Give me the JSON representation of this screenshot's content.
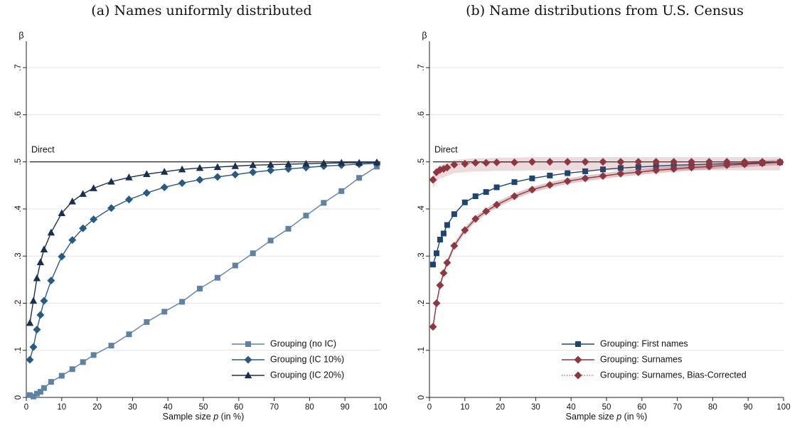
{
  "chart_data": [
    {
      "type": "line",
      "title": "(a) Names uniformly distributed",
      "ylabel": "β",
      "xlabel": "Sample size p (in %)",
      "xlabel_prefix": "Sample size ",
      "xlabel_var": "p",
      "xlabel_suffix": " (in %)",
      "xlim": [
        0,
        100
      ],
      "ylim": [
        0,
        0.75
      ],
      "xticks": [
        0,
        10,
        20,
        30,
        40,
        50,
        60,
        70,
        80,
        90,
        100
      ],
      "yticks": [
        0,
        0.1,
        0.2,
        0.3,
        0.4,
        0.5,
        0.6,
        0.7
      ],
      "ytick_labels": [
        "0",
        ".1",
        ".2",
        ".3",
        ".4",
        ".5",
        ".6",
        ".7"
      ],
      "grid": true,
      "legend_position": "bottom-right",
      "reference_line": {
        "label": "Direct",
        "y": 0.5
      },
      "series": [
        {
          "name": "Grouping (no IC)",
          "color": "#5f82a3",
          "marker": "square",
          "points": [
            [
              1,
              0.005
            ],
            [
              2,
              0.002
            ],
            [
              3,
              0.008
            ],
            [
              4,
              0.012
            ],
            [
              5,
              0.02
            ],
            [
              7,
              0.033
            ],
            [
              10,
              0.046
            ],
            [
              13,
              0.06
            ],
            [
              16,
              0.075
            ],
            [
              19,
              0.09
            ],
            [
              24,
              0.11
            ],
            [
              29,
              0.134
            ],
            [
              34,
              0.16
            ],
            [
              39,
              0.182
            ],
            [
              44,
              0.203
            ],
            [
              49,
              0.231
            ],
            [
              54,
              0.254
            ],
            [
              59,
              0.28
            ],
            [
              64,
              0.306
            ],
            [
              69,
              0.333
            ],
            [
              74,
              0.358
            ],
            [
              79,
              0.386
            ],
            [
              84,
              0.413
            ],
            [
              89,
              0.438
            ],
            [
              94,
              0.466
            ],
            [
              99,
              0.49
            ]
          ]
        },
        {
          "name": "Grouping (IC 10%)",
          "color": "#2a5a80",
          "marker": "diamond",
          "points": [
            [
              1,
              0.08
            ],
            [
              2,
              0.107
            ],
            [
              3,
              0.144
            ],
            [
              4,
              0.175
            ],
            [
              5,
              0.205
            ],
            [
              7,
              0.248
            ],
            [
              10,
              0.299
            ],
            [
              13,
              0.334
            ],
            [
              16,
              0.359
            ],
            [
              19,
              0.378
            ],
            [
              24,
              0.402
            ],
            [
              29,
              0.42
            ],
            [
              34,
              0.434
            ],
            [
              39,
              0.446
            ],
            [
              44,
              0.455
            ],
            [
              49,
              0.462
            ],
            [
              54,
              0.468
            ],
            [
              59,
              0.473
            ],
            [
              64,
              0.478
            ],
            [
              69,
              0.482
            ],
            [
              74,
              0.485
            ],
            [
              79,
              0.488
            ],
            [
              84,
              0.491
            ],
            [
              89,
              0.493
            ],
            [
              94,
              0.495
            ],
            [
              99,
              0.497
            ]
          ]
        },
        {
          "name": "Grouping (IC 20%)",
          "color": "#1b2f4f",
          "marker": "triangle",
          "points": [
            [
              1,
              0.158
            ],
            [
              2,
              0.205
            ],
            [
              3,
              0.253
            ],
            [
              4,
              0.287
            ],
            [
              5,
              0.314
            ],
            [
              7,
              0.35
            ],
            [
              10,
              0.391
            ],
            [
              13,
              0.416
            ],
            [
              16,
              0.432
            ],
            [
              19,
              0.444
            ],
            [
              24,
              0.458
            ],
            [
              29,
              0.467
            ],
            [
              34,
              0.474
            ],
            [
              39,
              0.479
            ],
            [
              44,
              0.484
            ],
            [
              49,
              0.487
            ],
            [
              54,
              0.489
            ],
            [
              59,
              0.491
            ],
            [
              64,
              0.493
            ],
            [
              69,
              0.494
            ],
            [
              74,
              0.495
            ],
            [
              79,
              0.496
            ],
            [
              84,
              0.497
            ],
            [
              89,
              0.498
            ],
            [
              94,
              0.498
            ],
            [
              99,
              0.499
            ]
          ]
        }
      ]
    },
    {
      "type": "line",
      "title": "(b) Name distributions from U.S. Census",
      "ylabel": "β",
      "xlabel": "Sample size p (in %)",
      "xlabel_prefix": "Sample size ",
      "xlabel_var": "p",
      "xlabel_suffix": " (in %)",
      "xlim": [
        0,
        100
      ],
      "ylim": [
        0,
        0.75
      ],
      "xticks": [
        0,
        10,
        20,
        30,
        40,
        50,
        60,
        70,
        80,
        90,
        100
      ],
      "yticks": [
        0,
        0.1,
        0.2,
        0.3,
        0.4,
        0.5,
        0.6,
        0.7
      ],
      "ytick_labels": [
        "0",
        ".1",
        ".2",
        ".3",
        ".4",
        ".5",
        ".6",
        ".7"
      ],
      "grid": true,
      "legend_position": "bottom-right",
      "reference_line": {
        "label": "Direct",
        "y": 0.5
      },
      "series": [
        {
          "name": "Grouping: First names",
          "color": "#1e4570",
          "marker": "square",
          "points": [
            [
              1,
              0.282
            ],
            [
              2,
              0.306
            ],
            [
              3,
              0.335
            ],
            [
              4,
              0.348
            ],
            [
              5,
              0.366
            ],
            [
              7,
              0.389
            ],
            [
              10,
              0.414
            ],
            [
              13,
              0.427
            ],
            [
              16,
              0.436
            ],
            [
              19,
              0.446
            ],
            [
              24,
              0.457
            ],
            [
              29,
              0.465
            ],
            [
              34,
              0.471
            ],
            [
              39,
              0.476
            ],
            [
              44,
              0.48
            ],
            [
              49,
              0.484
            ],
            [
              54,
              0.487
            ],
            [
              59,
              0.489
            ],
            [
              64,
              0.491
            ],
            [
              69,
              0.493
            ],
            [
              74,
              0.494
            ],
            [
              79,
              0.495
            ],
            [
              84,
              0.496
            ],
            [
              89,
              0.497
            ],
            [
              94,
              0.498
            ],
            [
              99,
              0.499
            ]
          ]
        },
        {
          "name": "Grouping: Surnames",
          "color": "#8e3740",
          "marker": "diamond",
          "band": true,
          "points": [
            [
              1,
              0.15
            ],
            [
              2,
              0.2
            ],
            [
              3,
              0.238
            ],
            [
              4,
              0.264
            ],
            [
              5,
              0.286
            ],
            [
              7,
              0.322
            ],
            [
              10,
              0.355
            ],
            [
              13,
              0.379
            ],
            [
              16,
              0.395
            ],
            [
              19,
              0.409
            ],
            [
              24,
              0.427
            ],
            [
              29,
              0.441
            ],
            [
              34,
              0.451
            ],
            [
              39,
              0.459
            ],
            [
              44,
              0.465
            ],
            [
              49,
              0.47
            ],
            [
              54,
              0.475
            ],
            [
              59,
              0.478
            ],
            [
              64,
              0.482
            ],
            [
              69,
              0.485
            ],
            [
              74,
              0.488
            ],
            [
              79,
              0.49
            ],
            [
              84,
              0.493
            ],
            [
              89,
              0.495
            ],
            [
              94,
              0.497
            ],
            [
              99,
              0.499
            ]
          ]
        },
        {
          "name": "Grouping: Surnames, Bias-Corrected",
          "color": "#8e3740",
          "marker": "diamond",
          "dotted": true,
          "points": [
            [
              1,
              0.462
            ],
            [
              2,
              0.478
            ],
            [
              3,
              0.483
            ],
            [
              4,
              0.485
            ],
            [
              5,
              0.488
            ],
            [
              7,
              0.494
            ],
            [
              10,
              0.496
            ],
            [
              13,
              0.498
            ],
            [
              16,
              0.498
            ],
            [
              19,
              0.499
            ],
            [
              24,
              0.499
            ],
            [
              29,
              0.5
            ],
            [
              34,
              0.5
            ],
            [
              39,
              0.5
            ],
            [
              44,
              0.5
            ],
            [
              49,
              0.5
            ],
            [
              54,
              0.5
            ],
            [
              59,
              0.5
            ],
            [
              64,
              0.5
            ],
            [
              69,
              0.5
            ],
            [
              74,
              0.5
            ],
            [
              79,
              0.5
            ],
            [
              84,
              0.5
            ],
            [
              89,
              0.5
            ],
            [
              94,
              0.5
            ],
            [
              99,
              0.5
            ]
          ]
        }
      ]
    }
  ]
}
